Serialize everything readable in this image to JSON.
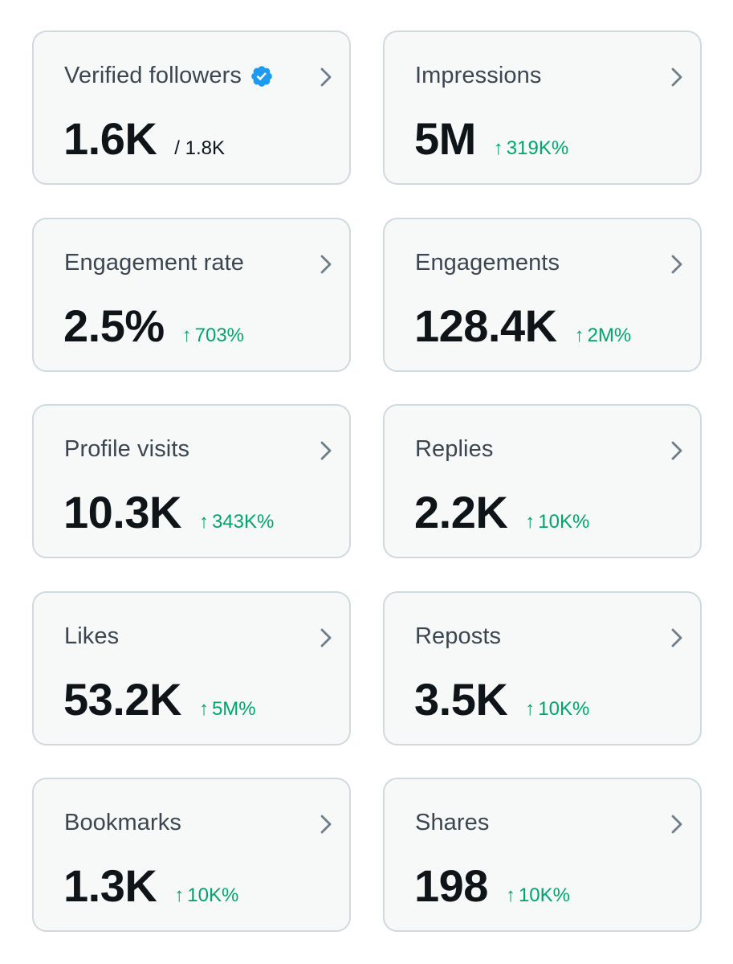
{
  "colors": {
    "card_background": "#f7f9f9",
    "card_border": "#cfd9de",
    "positive_change": "#00a36b",
    "verified_badge": "#1d9bf0"
  },
  "cards": [
    {
      "title": "Verified followers",
      "value": "1.6K",
      "sub": "/ 1.8K",
      "icon": "verified-badge-icon"
    },
    {
      "title": "Impressions",
      "value": "5M",
      "change_arrow": "↑",
      "change": "319K%"
    },
    {
      "title": "Engagement rate",
      "value": "2.5%",
      "change_arrow": "↑",
      "change": "703%"
    },
    {
      "title": "Engagements",
      "value": "128.4K",
      "change_arrow": "↑",
      "change": "2M%"
    },
    {
      "title": "Profile visits",
      "value": "10.3K",
      "change_arrow": "↑",
      "change": "343K%"
    },
    {
      "title": "Replies",
      "value": "2.2K",
      "change_arrow": "↑",
      "change": "10K%"
    },
    {
      "title": "Likes",
      "value": "53.2K",
      "change_arrow": "↑",
      "change": "5M%"
    },
    {
      "title": "Reposts",
      "value": "3.5K",
      "change_arrow": "↑",
      "change": "10K%"
    },
    {
      "title": "Bookmarks",
      "value": "1.3K",
      "change_arrow": "↑",
      "change": "10K%"
    },
    {
      "title": "Shares",
      "value": "198",
      "change_arrow": "↑",
      "change": "10K%"
    }
  ]
}
